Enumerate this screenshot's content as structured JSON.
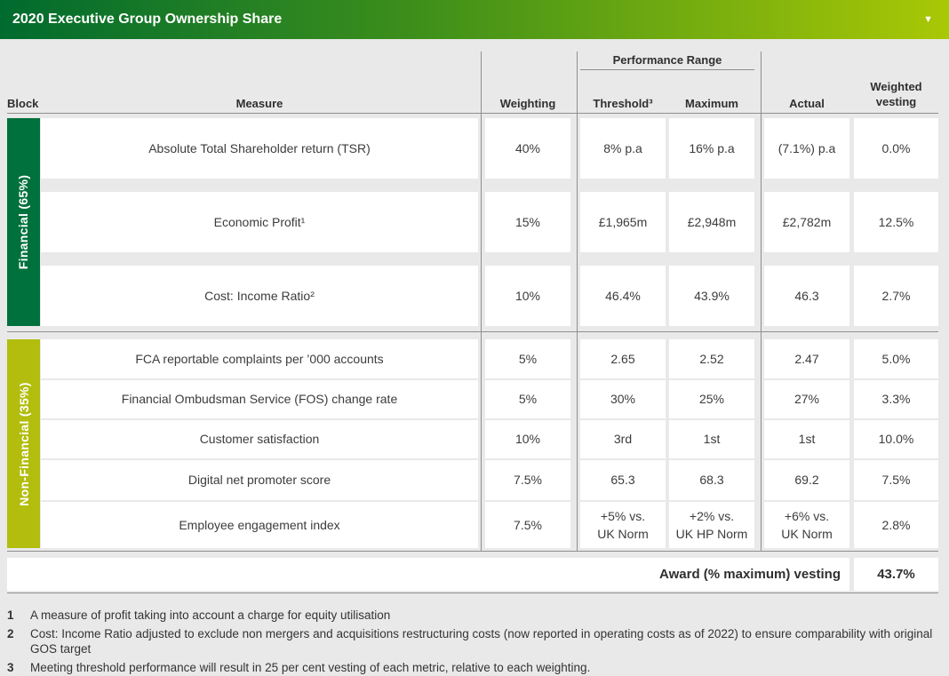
{
  "header": {
    "title": "2020 Executive Group Ownership Share",
    "chevron_icon": "▼"
  },
  "colors": {
    "header_gradient_start": "#006b2f",
    "header_gradient_end": "#a9c805",
    "financial_block": "#00713c",
    "non_financial_block": "#b2bd0e"
  },
  "table": {
    "performance_range_label": "Performance Range",
    "columns": {
      "block": "Block",
      "measure": "Measure",
      "weighting": "Weighting",
      "threshold": "Threshold³",
      "maximum": "Maximum",
      "actual": "Actual",
      "weighted_vesting": "Weighted vesting"
    },
    "blocks": [
      {
        "label": "Financial (65%)",
        "rows": [
          {
            "measure": "Absolute Total Shareholder return (TSR)",
            "weighting": "40%",
            "threshold": "8% p.a",
            "maximum": "16% p.a",
            "actual": "(7.1%) p.a",
            "weighted_vesting": "0.0%"
          },
          {
            "measure": "Economic Profit¹",
            "weighting": "15%",
            "threshold": "£1,965m",
            "maximum": "£2,948m",
            "actual": "£2,782m",
            "weighted_vesting": "12.5%"
          },
          {
            "measure": "Cost: Income Ratio²",
            "weighting": "10%",
            "threshold": "46.4%",
            "maximum": "43.9%",
            "actual": "46.3",
            "weighted_vesting": "2.7%"
          }
        ]
      },
      {
        "label": "Non-Financial (35%)",
        "rows": [
          {
            "measure": "FCA reportable complaints per ’000 accounts",
            "weighting": "5%",
            "threshold": "2.65",
            "maximum": "2.52",
            "actual": "2.47",
            "weighted_vesting": "5.0%"
          },
          {
            "measure": "Financial Ombudsman Service (FOS) change rate",
            "weighting": "5%",
            "threshold": "30%",
            "maximum": "25%",
            "actual": "27%",
            "weighted_vesting": "3.3%"
          },
          {
            "measure": "Customer satisfaction",
            "weighting": "10%",
            "threshold": "3rd",
            "maximum": "1st",
            "actual": "1st",
            "weighted_vesting": "10.0%"
          },
          {
            "measure": "Digital net promoter score",
            "weighting": "7.5%",
            "threshold": "65.3",
            "maximum": "68.3",
            "actual": "69.2",
            "weighted_vesting": "7.5%"
          },
          {
            "measure": "Employee engagement index",
            "weighting": "7.5%",
            "threshold": "+5% vs.\nUK Norm",
            "maximum": "+2% vs.\nUK HP Norm",
            "actual": "+6% vs.\nUK Norm",
            "weighted_vesting": "2.8%"
          }
        ]
      }
    ],
    "award": {
      "label": "Award (% maximum) vesting",
      "value": "43.7%"
    }
  },
  "footnotes": [
    {
      "num": "1",
      "text": "A measure of profit taking into account a charge for equity utilisation"
    },
    {
      "num": "2",
      "text": "Cost: Income Ratio adjusted to exclude non mergers and acquisitions restructuring costs (now reported in operating costs as of 2022) to ensure comparability with original GOS target"
    },
    {
      "num": "3",
      "text": "Meeting threshold performance will result in 25 per cent vesting of each metric, relative to each weighting."
    }
  ]
}
